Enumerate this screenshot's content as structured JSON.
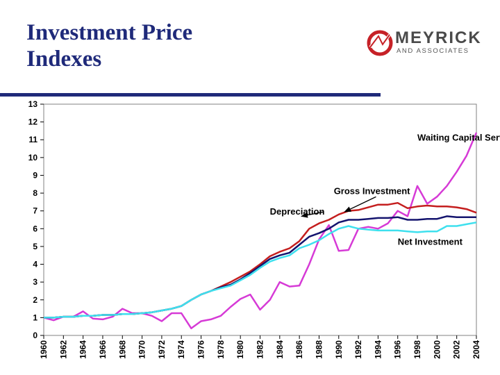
{
  "header": {
    "title_line1": "Investment Price",
    "title_line2": "Indexes"
  },
  "logo": {
    "name": "MEYRICK",
    "sub": "AND ASSOCIATES",
    "mark": "meyrick-logo-icon",
    "color": "#c62127"
  },
  "chart_data": {
    "type": "line",
    "title": "",
    "xlabel": "",
    "ylabel": "",
    "xlim": [
      1960,
      2004
    ],
    "ylim": [
      0,
      13
    ],
    "grid": false,
    "legend": "annotations",
    "x": [
      1960,
      1961,
      1962,
      1963,
      1964,
      1965,
      1966,
      1967,
      1968,
      1969,
      1970,
      1971,
      1972,
      1973,
      1974,
      1975,
      1976,
      1977,
      1978,
      1979,
      1980,
      1981,
      1982,
      1983,
      1984,
      1985,
      1986,
      1987,
      1988,
      1989,
      1990,
      1991,
      1992,
      1993,
      1994,
      1995,
      1996,
      1997,
      1998,
      1999,
      2000,
      2001,
      2002,
      2003,
      2004
    ],
    "x_tick_labels": [
      "1960",
      "1962",
      "1964",
      "1966",
      "1968",
      "1970",
      "1972",
      "1974",
      "1976",
      "1978",
      "1980",
      "1982",
      "1984",
      "1986",
      "1988",
      "1990",
      "1992",
      "1994",
      "1996",
      "1998",
      "2000",
      "2002",
      "2004"
    ],
    "y_tick_labels": [
      "0",
      "1",
      "2",
      "3",
      "4",
      "5",
      "6",
      "7",
      "8",
      "9",
      "10",
      "11",
      "12",
      "13"
    ],
    "series": [
      {
        "name": "Waiting Capital Services",
        "color": "#d63ad6",
        "values": [
          1.0,
          0.85,
          1.05,
          1.05,
          1.35,
          0.95,
          0.9,
          1.05,
          1.5,
          1.25,
          1.25,
          1.1,
          0.8,
          1.25,
          1.25,
          0.4,
          0.8,
          0.9,
          1.1,
          1.6,
          2.05,
          2.3,
          1.45,
          2.0,
          3.0,
          2.75,
          2.8,
          4.0,
          5.4,
          6.2,
          4.75,
          4.8,
          6.0,
          6.1,
          6.0,
          6.3,
          7.0,
          6.7,
          8.4,
          7.4,
          7.8,
          8.4,
          9.2,
          10.1,
          11.4
        ]
      },
      {
        "name": "Gross Investment",
        "color": "#c41e1e",
        "values": [
          1.0,
          1.0,
          1.05,
          1.05,
          1.1,
          1.1,
          1.15,
          1.15,
          1.2,
          1.2,
          1.25,
          1.3,
          1.4,
          1.5,
          1.65,
          2.0,
          2.3,
          2.5,
          2.75,
          3.0,
          3.3,
          3.6,
          4.0,
          4.45,
          4.7,
          4.9,
          5.3,
          6.0,
          6.3,
          6.5,
          6.8,
          7.0,
          7.05,
          7.2,
          7.35,
          7.35,
          7.45,
          7.15,
          7.25,
          7.3,
          7.25,
          7.25,
          7.2,
          7.1,
          6.9
        ]
      },
      {
        "name": "Depreciation",
        "color": "#14146e",
        "values": [
          1.0,
          1.0,
          1.05,
          1.05,
          1.1,
          1.1,
          1.15,
          1.15,
          1.2,
          1.2,
          1.25,
          1.3,
          1.4,
          1.5,
          1.65,
          2.0,
          2.3,
          2.5,
          2.7,
          2.85,
          3.15,
          3.5,
          3.9,
          4.3,
          4.5,
          4.65,
          5.1,
          5.55,
          5.75,
          6.0,
          6.35,
          6.5,
          6.5,
          6.55,
          6.6,
          6.6,
          6.65,
          6.5,
          6.5,
          6.55,
          6.55,
          6.7,
          6.65,
          6.65,
          6.65
        ]
      },
      {
        "name": "Net Investment",
        "color": "#3ee0ee",
        "values": [
          1.0,
          1.0,
          1.05,
          1.05,
          1.1,
          1.1,
          1.15,
          1.15,
          1.2,
          1.2,
          1.25,
          1.3,
          1.4,
          1.5,
          1.65,
          2.0,
          2.3,
          2.5,
          2.65,
          2.8,
          3.1,
          3.4,
          3.8,
          4.15,
          4.35,
          4.5,
          4.9,
          5.1,
          5.35,
          5.7,
          6.0,
          6.15,
          6.0,
          5.95,
          5.9,
          5.9,
          5.9,
          5.85,
          5.8,
          5.85,
          5.85,
          6.15,
          6.15,
          6.25,
          6.35
        ]
      }
    ],
    "annotations": [
      {
        "text": "Waiting Capital Services",
        "anchor_year": 1998,
        "label_value": 10.95
      },
      {
        "text": "Gross Investment",
        "anchor_year": 1989.5,
        "label_value": 7.95,
        "arrow_to_year": 1990.6,
        "arrow_to_value": 6.95
      },
      {
        "text": "Depreciation",
        "anchor_year": 1983,
        "label_value": 6.8,
        "arrow_to_year": 1986.2,
        "arrow_to_value": 6.7
      },
      {
        "text": "Net Investment",
        "anchor_year": 1996,
        "label_value": 5.1
      }
    ]
  }
}
